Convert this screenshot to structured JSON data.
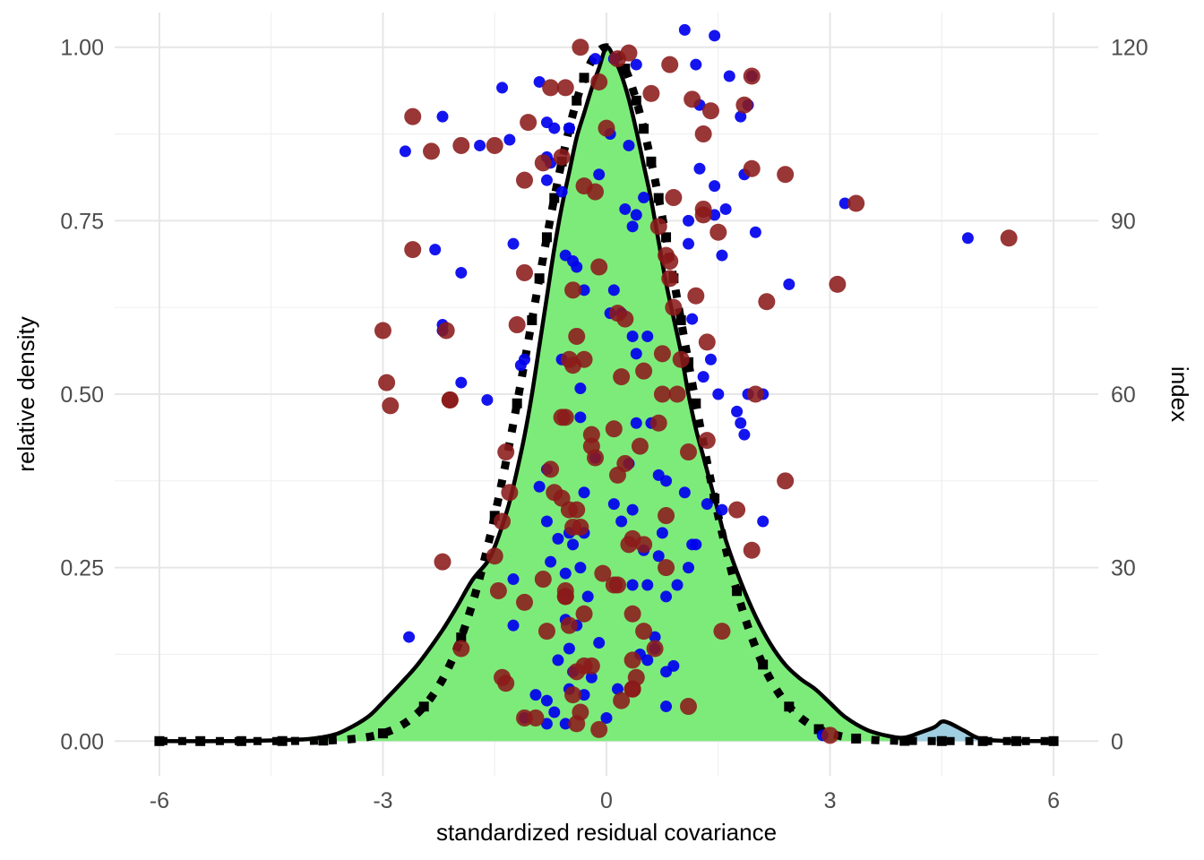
{
  "chart_data": {
    "type": "scatter",
    "xlabel": "standardized residual covariance",
    "ylabel": "relative density",
    "y2label": "index",
    "xlim": [
      -6.6,
      6.6
    ],
    "ylim": [
      -0.05,
      1.05
    ],
    "y2lim": [
      -6,
      126
    ],
    "x_ticks": [
      "-6",
      "-3",
      "0",
      "3",
      "6"
    ],
    "x_tick_values": [
      -6,
      -3,
      0,
      3,
      6
    ],
    "y_ticks": [
      "0.00",
      "0.25",
      "0.50",
      "0.75",
      "1.00"
    ],
    "y_tick_values": [
      0,
      0.25,
      0.5,
      0.75,
      1.0
    ],
    "y2_ticks": [
      "0",
      "30",
      "60",
      "90",
      "120"
    ],
    "y2_tick_values": [
      0,
      30,
      60,
      90,
      120
    ],
    "grid": true,
    "colors": {
      "density_fill": "#7deb7a",
      "tail_fill": "#9fcfe0",
      "density_line": "#000000",
      "reference_line": "#000000",
      "series_a": "#0000ee",
      "series_b": "#8b1a1a"
    },
    "density_curve": {
      "x": [
        -6,
        -5,
        -4.5,
        -4,
        -3.7,
        -3.5,
        -3.2,
        -3.0,
        -2.7,
        -2.5,
        -2.2,
        -2.0,
        -1.8,
        -1.6,
        -1.5,
        -1.4,
        -1.3,
        -1.2,
        -1.1,
        -1.0,
        -0.9,
        -0.8,
        -0.7,
        -0.6,
        -0.5,
        -0.4,
        -0.3,
        -0.2,
        -0.1,
        0,
        0.1,
        0.2,
        0.3,
        0.4,
        0.5,
        0.6,
        0.7,
        0.8,
        0.9,
        1.0,
        1.1,
        1.2,
        1.3,
        1.4,
        1.5,
        1.6,
        1.8,
        2.0,
        2.2,
        2.4,
        2.6,
        2.8,
        3.0,
        3.2,
        3.5,
        3.8,
        4.0,
        4.2,
        4.4,
        4.5,
        4.6,
        4.8,
        5.0,
        5.3,
        6
      ],
      "y": [
        0,
        0,
        0.001,
        0.003,
        0.008,
        0.016,
        0.035,
        0.056,
        0.09,
        0.115,
        0.16,
        0.195,
        0.232,
        0.258,
        0.28,
        0.31,
        0.345,
        0.39,
        0.44,
        0.5,
        0.57,
        0.64,
        0.71,
        0.77,
        0.82,
        0.87,
        0.905,
        0.94,
        0.97,
        1.0,
        0.985,
        0.96,
        0.925,
        0.88,
        0.83,
        0.78,
        0.72,
        0.66,
        0.61,
        0.56,
        0.5,
        0.45,
        0.41,
        0.37,
        0.33,
        0.29,
        0.23,
        0.18,
        0.14,
        0.11,
        0.09,
        0.075,
        0.055,
        0.035,
        0.016,
        0.007,
        0.005,
        0.012,
        0.02,
        0.028,
        0.026,
        0.015,
        0.004,
        0.0005,
        0
      ]
    },
    "tail_region": {
      "x_from": 3.95,
      "x_to": 5.0
    },
    "reference_squares_x": [
      -6,
      -5.45,
      -4.9,
      -4.35,
      -3.8,
      -3.0,
      -2.45,
      -1.95,
      -1.5,
      -1.2,
      -1.0,
      -0.9,
      -0.8,
      -0.7,
      -0.6,
      -0.5,
      -0.4,
      -0.3,
      0.25,
      0.4,
      0.5,
      0.6,
      0.7,
      0.8,
      0.9,
      1.0,
      1.1,
      1.2,
      1.45,
      1.75,
      2.1,
      2.45,
      2.85,
      3.35,
      4.0,
      4.5,
      5.05,
      5.5,
      6
    ],
    "series": [
      {
        "name": "",
        "marker": "small",
        "points": [
          [
            -2.7,
            102
          ],
          [
            -2.2,
            108
          ],
          [
            -2.3,
            85
          ],
          [
            -2.2,
            72
          ],
          [
            -2.2,
            71
          ],
          [
            -1.95,
            81
          ],
          [
            -1.95,
            62
          ],
          [
            -1.6,
            59
          ],
          [
            -1.7,
            103
          ],
          [
            -1.4,
            113
          ],
          [
            -1.3,
            104
          ],
          [
            -1.25,
            86
          ],
          [
            -1.15,
            65
          ],
          [
            -1.1,
            66
          ],
          [
            -1.25,
            28
          ],
          [
            -1.25,
            20
          ],
          [
            -0.9,
            114
          ],
          [
            -0.8,
            107
          ],
          [
            -0.7,
            106
          ],
          [
            -0.8,
            101
          ],
          [
            -0.75,
            100
          ],
          [
            -0.8,
            97
          ],
          [
            -0.6,
            95
          ],
          [
            -0.5,
            106
          ],
          [
            -0.5,
            106
          ],
          [
            -0.55,
            84
          ],
          [
            -0.45,
            83
          ],
          [
            -0.4,
            82
          ],
          [
            -0.3,
            78
          ],
          [
            -0.6,
            66
          ],
          [
            -0.35,
            61
          ],
          [
            -0.35,
            56
          ],
          [
            -0.8,
            47
          ],
          [
            -0.9,
            44
          ],
          [
            -0.3,
            43
          ],
          [
            -0.8,
            38
          ],
          [
            -0.65,
            35
          ],
          [
            -0.5,
            36
          ],
          [
            -0.45,
            34
          ],
          [
            -0.3,
            36
          ],
          [
            -0.75,
            31
          ],
          [
            -0.55,
            29
          ],
          [
            -0.35,
            30
          ],
          [
            -0.25,
            25
          ],
          [
            -0.55,
            21
          ],
          [
            -0.4,
            20
          ],
          [
            -0.1,
            17
          ],
          [
            -0.5,
            16
          ],
          [
            -0.65,
            14
          ],
          [
            -0.2,
            11
          ],
          [
            -0.5,
            9
          ],
          [
            -0.45,
            12
          ],
          [
            -0.7,
            5
          ],
          [
            -0.55,
            3
          ],
          [
            -0.8,
            3
          ],
          [
            -0.95,
            8
          ],
          [
            -1.1,
            4
          ],
          [
            -0.8,
            7
          ],
          [
            -0.3,
            8
          ],
          [
            0.0,
            4
          ],
          [
            0.15,
            9
          ],
          [
            0.05,
            105
          ],
          [
            0.1,
            118
          ],
          [
            -0.15,
            118
          ],
          [
            0.4,
            117
          ],
          [
            0.3,
            103
          ],
          [
            -0.1,
            98
          ],
          [
            0.25,
            92
          ],
          [
            0.35,
            89
          ],
          [
            0.4,
            91
          ],
          [
            0.5,
            94
          ],
          [
            0.1,
            78
          ],
          [
            0.05,
            74
          ],
          [
            0.2,
            74
          ],
          [
            0.35,
            70
          ],
          [
            0.4,
            67
          ],
          [
            0.55,
            70
          ],
          [
            0.4,
            55
          ],
          [
            0.6,
            55
          ],
          [
            -0.15,
            49
          ],
          [
            0.3,
            48
          ],
          [
            0.7,
            46
          ],
          [
            0.2,
            38
          ],
          [
            0.35,
            40
          ],
          [
            0.1,
            41
          ],
          [
            0.8,
            45
          ],
          [
            0.7,
            32
          ],
          [
            0.5,
            33
          ],
          [
            0.75,
            36
          ],
          [
            0.35,
            27
          ],
          [
            0.55,
            27
          ],
          [
            0.8,
            25
          ],
          [
            0.65,
            16
          ],
          [
            0.45,
            15
          ],
          [
            0.55,
            14
          ],
          [
            0.65,
            18
          ],
          [
            0.8,
            12
          ],
          [
            0.9,
            13
          ],
          [
            0.8,
            6
          ],
          [
            1.05,
            123
          ],
          [
            1.2,
            117
          ],
          [
            1.45,
            122
          ],
          [
            1.25,
            110
          ],
          [
            1.65,
            115
          ],
          [
            1.95,
            115
          ],
          [
            1.9,
            110
          ],
          [
            1.8,
            108
          ],
          [
            1.25,
            99
          ],
          [
            1.45,
            96
          ],
          [
            1.6,
            92
          ],
          [
            1.85,
            98
          ],
          [
            1.1,
            90
          ],
          [
            1.45,
            91
          ],
          [
            1.1,
            86
          ],
          [
            1.55,
            84
          ],
          [
            1.15,
            73
          ],
          [
            1.4,
            66
          ],
          [
            1.5,
            60
          ],
          [
            1.75,
            57
          ],
          [
            1.8,
            55
          ],
          [
            1.85,
            53
          ],
          [
            1.9,
            60
          ],
          [
            2.0,
            88
          ],
          [
            2.1,
            60
          ],
          [
            2.1,
            38
          ],
          [
            2.45,
            79
          ],
          [
            1.35,
            41
          ],
          [
            1.15,
            34
          ],
          [
            1.1,
            30
          ],
          [
            1.2,
            34
          ],
          [
            1.55,
            40
          ],
          [
            1.3,
            63
          ],
          [
            0.95,
            27
          ],
          [
            1.05,
            43
          ],
          [
            3.2,
            93
          ],
          [
            2.9,
            1
          ],
          [
            4.85,
            87
          ],
          [
            -2.65,
            18
          ]
        ]
      },
      {
        "name": "",
        "marker": "large",
        "points": [
          [
            -2.6,
            108
          ],
          [
            -2.35,
            102
          ],
          [
            -2.6,
            85
          ],
          [
            -1.95,
            103
          ],
          [
            -1.5,
            103
          ],
          [
            -1.1,
            97
          ],
          [
            -1.05,
            107
          ],
          [
            -0.85,
            100
          ],
          [
            -0.75,
            113
          ],
          [
            -0.6,
            101
          ],
          [
            -0.3,
            96
          ],
          [
            -0.15,
            95
          ],
          [
            -0.1,
            82
          ],
          [
            0.0,
            106
          ],
          [
            -0.35,
            120
          ],
          [
            0.15,
            118
          ],
          [
            0.3,
            119
          ],
          [
            -0.55,
            113
          ],
          [
            -0.1,
            114
          ],
          [
            0.6,
            112
          ],
          [
            0.85,
            117
          ],
          [
            1.15,
            111
          ],
          [
            1.3,
            105
          ],
          [
            1.4,
            109
          ],
          [
            1.85,
            110
          ],
          [
            1.95,
            115
          ],
          [
            1.95,
            99
          ],
          [
            2.4,
            98
          ],
          [
            0.9,
            94
          ],
          [
            1.3,
            92
          ],
          [
            1.3,
            91
          ],
          [
            0.7,
            89
          ],
          [
            1.5,
            88
          ],
          [
            0.8,
            84
          ],
          [
            0.85,
            83
          ],
          [
            0.85,
            80
          ],
          [
            0.9,
            75
          ],
          [
            1.2,
            77
          ],
          [
            1.35,
            69
          ],
          [
            1.0,
            66
          ],
          [
            0.75,
            67
          ],
          [
            0.95,
            60
          ],
          [
            1.1,
            50
          ],
          [
            1.35,
            52
          ],
          [
            0.7,
            55
          ],
          [
            0.75,
            60
          ],
          [
            0.5,
            64
          ],
          [
            0.25,
            73
          ],
          [
            0.15,
            74
          ],
          [
            -0.3,
            66
          ],
          [
            -0.4,
            70
          ],
          [
            -0.45,
            78
          ],
          [
            -0.5,
            66
          ],
          [
            -0.45,
            65
          ],
          [
            -0.6,
            56
          ],
          [
            -0.2,
            53
          ],
          [
            -0.15,
            49
          ],
          [
            -0.2,
            51
          ],
          [
            0.1,
            54
          ],
          [
            0.15,
            46
          ],
          [
            0.25,
            48
          ],
          [
            0.45,
            51
          ],
          [
            0.2,
            63
          ],
          [
            0.8,
            39
          ],
          [
            0.35,
            35
          ],
          [
            0.5,
            34
          ],
          [
            0.8,
            30
          ],
          [
            0.35,
            22
          ],
          [
            0.15,
            27
          ],
          [
            -0.4,
            40
          ],
          [
            -0.7,
            43
          ],
          [
            -0.6,
            42
          ],
          [
            -0.75,
            47
          ],
          [
            -0.35,
            37
          ],
          [
            -0.45,
            37
          ],
          [
            -1.3,
            43
          ],
          [
            -1.35,
            50
          ],
          [
            -1.4,
            38
          ],
          [
            -1.5,
            32
          ],
          [
            -1.45,
            26
          ],
          [
            -1.1,
            24
          ],
          [
            -0.85,
            28
          ],
          [
            -0.55,
            26
          ],
          [
            -0.55,
            25
          ],
          [
            -0.5,
            20
          ],
          [
            -0.8,
            19
          ],
          [
            -0.55,
            25
          ],
          [
            -0.3,
            22
          ],
          [
            -0.05,
            29
          ],
          [
            0.1,
            27
          ],
          [
            0.3,
            34
          ],
          [
            0.5,
            19
          ],
          [
            0.65,
            16
          ],
          [
            0.35,
            14
          ],
          [
            0.4,
            11
          ],
          [
            0.35,
            9
          ],
          [
            -0.2,
            13
          ],
          [
            -0.3,
            13
          ],
          [
            -0.4,
            12
          ],
          [
            -0.45,
            8
          ],
          [
            -0.35,
            5
          ],
          [
            -0.4,
            3
          ],
          [
            -0.1,
            2
          ],
          [
            0.2,
            7
          ],
          [
            0.35,
            9
          ],
          [
            -0.95,
            4
          ],
          [
            -1.1,
            4
          ],
          [
            -1.35,
            10
          ],
          [
            -1.4,
            11
          ],
          [
            -1.95,
            16
          ],
          [
            -2.2,
            31
          ],
          [
            -2.15,
            71
          ],
          [
            -2.1,
            59
          ],
          [
            -2.9,
            58
          ],
          [
            -2.95,
            62
          ],
          [
            -3.0,
            71
          ],
          [
            -2.1,
            59
          ],
          [
            1.55,
            19
          ],
          [
            1.75,
            40
          ],
          [
            1.95,
            33
          ],
          [
            2.0,
            60
          ],
          [
            2.4,
            45
          ],
          [
            2.15,
            76
          ],
          [
            3.1,
            79
          ],
          [
            3.35,
            93
          ],
          [
            3.0,
            1
          ],
          [
            1.1,
            6
          ],
          [
            5.4,
            87
          ],
          [
            -1.2,
            72
          ],
          [
            -1.1,
            81
          ],
          [
            -0.55,
            56
          ],
          [
            -0.5,
            40
          ]
        ]
      }
    ]
  }
}
